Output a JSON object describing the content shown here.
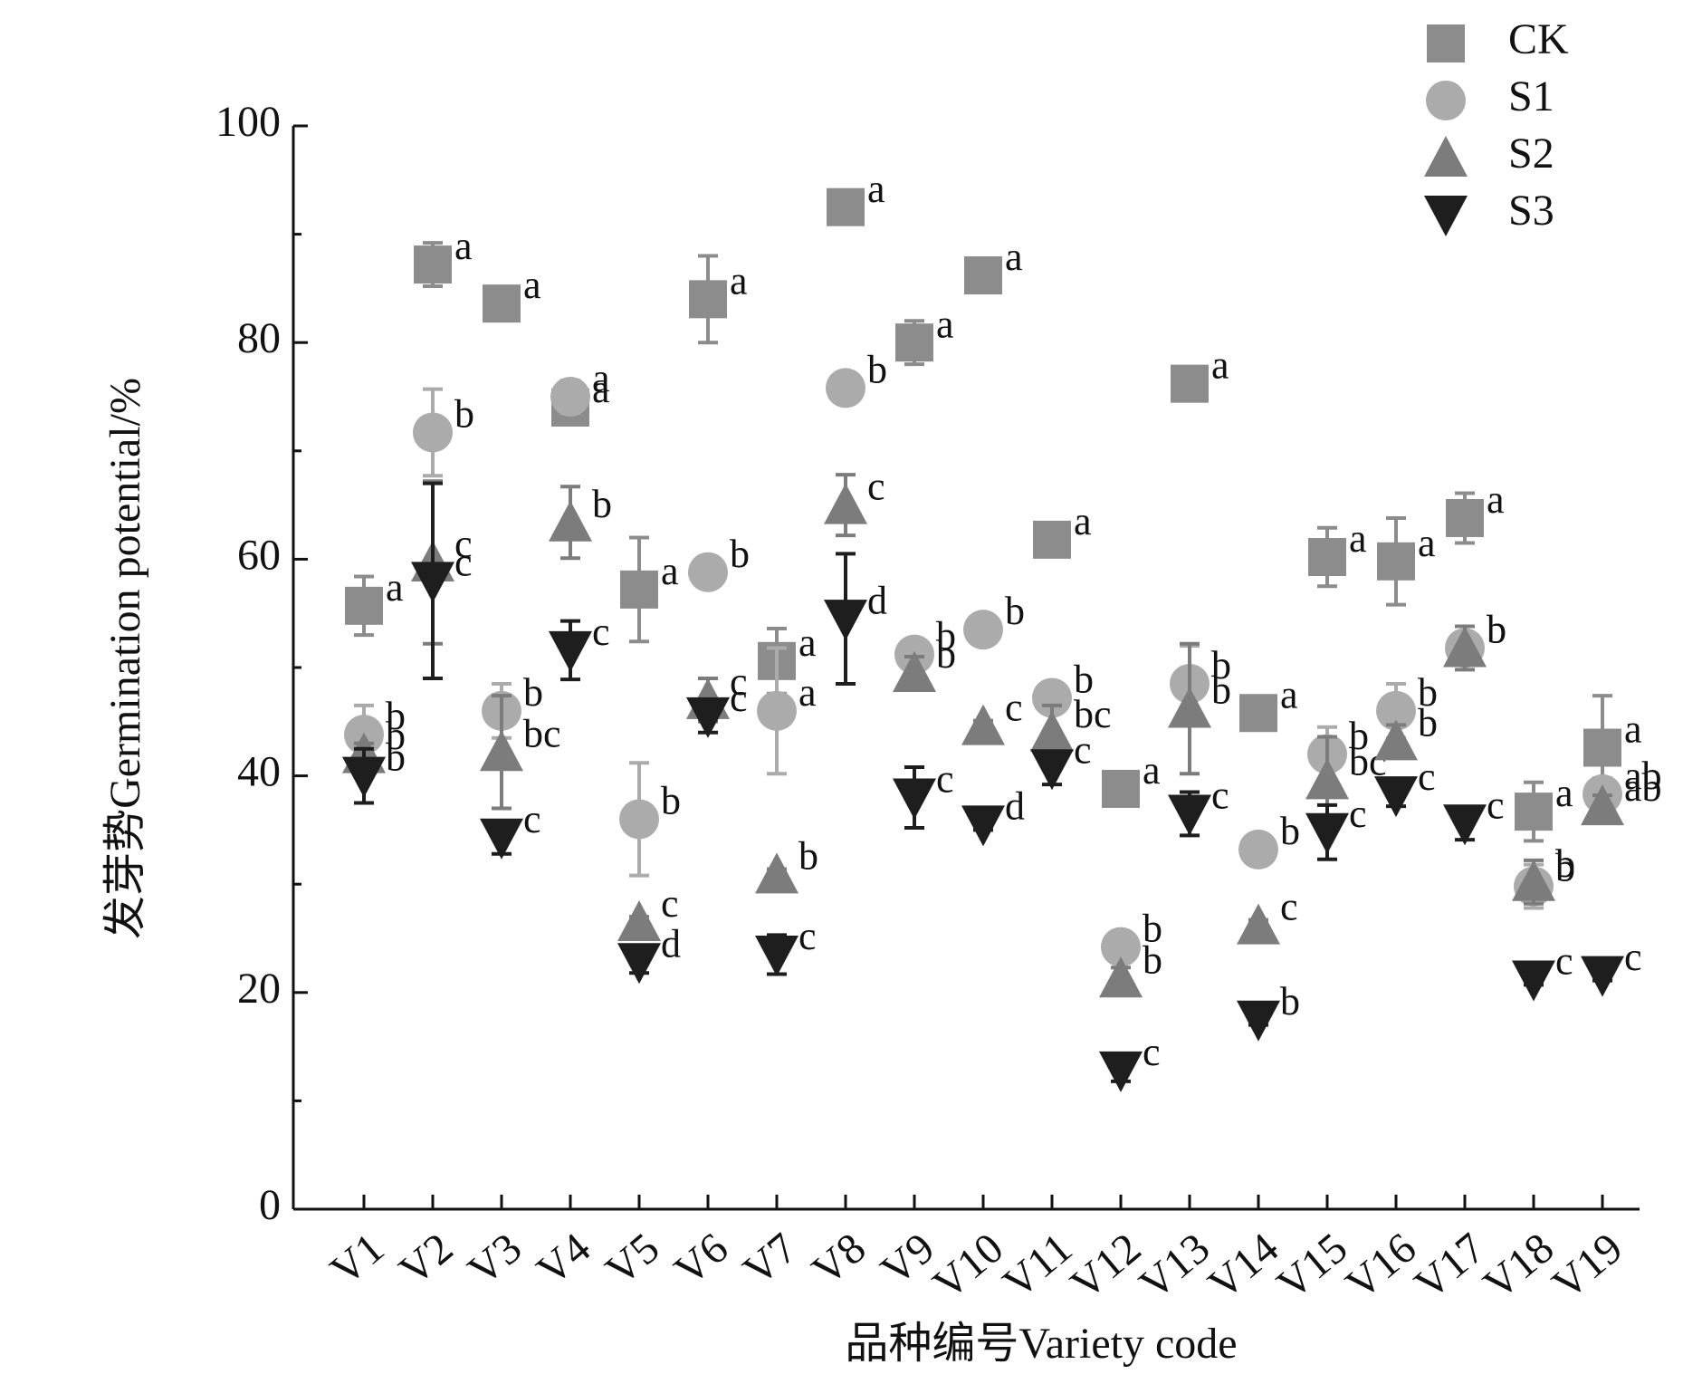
{
  "chart_data": {
    "type": "scatter",
    "ylabel": "发芽势Germination potential/%",
    "xlabel": "品种编号Variety code",
    "categories": [
      "V1",
      "V2",
      "V3",
      "V4",
      "V5",
      "V6",
      "V7",
      "V8",
      "V9",
      "V10",
      "V11",
      "V12",
      "V13",
      "V14",
      "V15",
      "V16",
      "V17",
      "V18",
      "V19"
    ],
    "ylim": [
      0,
      100
    ],
    "yticks": [
      0,
      20,
      40,
      60,
      80,
      100
    ],
    "yminorticks": [
      10,
      30,
      50,
      70,
      90
    ],
    "legend": "top-right",
    "series": [
      {
        "name": "CK",
        "color": "#8c8c8c",
        "marker": "square",
        "values": [
          55.7,
          87.2,
          83.6,
          74,
          57.2,
          84,
          50.6,
          92.5,
          80,
          86.2,
          61.8,
          38.8,
          76.2,
          45.8,
          60.2,
          59.8,
          63.8,
          36.7,
          42.6
        ],
        "errors": [
          2.7,
          2,
          0.5,
          1,
          4.8,
          4,
          3,
          0.5,
          2,
          0.5,
          1.5,
          0.8,
          0.5,
          0.5,
          2.7,
          4,
          2.3,
          2.7,
          4.8
        ],
        "letters": [
          "a",
          "a",
          "a",
          "a",
          "a",
          "a",
          "a",
          "a",
          "a",
          "a",
          "a",
          "a",
          "a",
          "a",
          "a",
          "a",
          "a",
          "a",
          "a"
        ]
      },
      {
        "name": "S1",
        "color": "#ababab",
        "marker": "circle",
        "values": [
          43.8,
          71.7,
          46,
          75,
          36,
          58.8,
          46,
          75.8,
          51.2,
          53.5,
          47.2,
          24.2,
          48.5,
          33.2,
          42,
          46,
          51.8,
          29.8,
          38.3
        ],
        "errors": [
          2.7,
          4,
          2.5,
          1.5,
          5.2,
          0.5,
          5.8,
          0.5,
          1,
          0.5,
          1,
          1,
          3.5,
          0.5,
          2.5,
          2.5,
          1,
          2,
          1.5
        ],
        "letters": [
          "b",
          "b",
          "b",
          "a",
          "b",
          "b",
          "a",
          "b",
          "b",
          "b",
          "b",
          "b",
          "b",
          "b",
          "b",
          "b",
          "b",
          "b",
          "ab"
        ]
      },
      {
        "name": "S2",
        "color": "#7c7c7c",
        "marker": "triangle-up",
        "values": [
          42,
          59.7,
          42.2,
          63.4,
          26.5,
          47,
          30.9,
          65,
          49.5,
          44.6,
          44,
          21.3,
          46.2,
          26.2,
          39.6,
          43.2,
          51.8,
          30.2,
          37.2
        ],
        "errors": [
          1,
          7.5,
          5.2,
          3.3,
          0.5,
          2,
          0.5,
          2.8,
          1.5,
          0.5,
          2.5,
          1,
          6,
          0.5,
          4,
          1.5,
          2,
          2,
          1
        ],
        "letters": [
          "b",
          "c",
          "bc",
          "b",
          "c",
          "c",
          "b",
          "c",
          "b",
          "c",
          "bc",
          "b",
          "b",
          "c",
          "bc",
          "b",
          "b",
          "b",
          "ab"
        ]
      },
      {
        "name": "S3",
        "color": "#1e1e1e",
        "marker": "triangle-down",
        "values": [
          40,
          58,
          34.3,
          51.6,
          22.8,
          45.5,
          23.5,
          54.5,
          38,
          35.5,
          40.7,
          12.8,
          36.5,
          17.5,
          34.8,
          38.2,
          35.6,
          21.2,
          21.6
        ],
        "errors": [
          2.5,
          9,
          1.5,
          2.7,
          1,
          1.5,
          1.8,
          6,
          2.8,
          0.5,
          1.5,
          1,
          2,
          0.5,
          2.5,
          1,
          1.5,
          0.5,
          0.5
        ],
        "letters": [
          "b",
          "c",
          "c",
          "c",
          "d",
          "c",
          "c",
          "d",
          "c",
          "d",
          "c",
          "c",
          "c",
          "b",
          "c",
          "c",
          "c",
          "c",
          "c"
        ]
      }
    ]
  }
}
